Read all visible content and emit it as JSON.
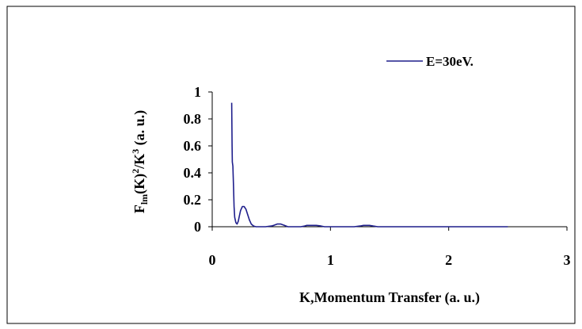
{
  "chart_data": {
    "type": "line",
    "title": "",
    "xlabel": "K,Momentum Transfer (a. u.)",
    "ylabel": {
      "parts": [
        {
          "text": "F",
          "style": "normal"
        },
        {
          "text": "lm",
          "style": "sub"
        },
        {
          "text": "(K)",
          "style": "normal"
        },
        {
          "text": "2",
          "style": "super"
        },
        {
          "text": "/K",
          "style": "normal"
        },
        {
          "text": "3",
          "style": "super"
        },
        {
          "text": " (a. u.)",
          "style": "normal"
        }
      ]
    },
    "xlim": [
      0,
      3
    ],
    "ylim": [
      0,
      1
    ],
    "xticks": [
      0,
      1,
      2,
      3
    ],
    "xtick_labels": [
      "0",
      "1",
      "2",
      "3"
    ],
    "yticks": [
      0,
      0.2,
      0.4,
      0.6,
      0.8,
      1
    ],
    "ytick_labels": [
      "0",
      "0.2",
      "0.4",
      "0.6",
      "0.8",
      "1"
    ],
    "grid": false,
    "legend_position": "top-right",
    "series": [
      {
        "name": "E=30eV.",
        "color": "#1f1f8c",
        "points": [
          [
            0.165,
            0.92
          ],
          [
            0.168,
            0.6
          ],
          [
            0.17,
            0.48
          ],
          [
            0.175,
            0.45
          ],
          [
            0.18,
            0.3
          ],
          [
            0.185,
            0.15
          ],
          [
            0.19,
            0.07
          ],
          [
            0.2,
            0.03
          ],
          [
            0.21,
            0.02
          ],
          [
            0.22,
            0.04
          ],
          [
            0.23,
            0.08
          ],
          [
            0.24,
            0.12
          ],
          [
            0.255,
            0.15
          ],
          [
            0.27,
            0.15
          ],
          [
            0.285,
            0.13
          ],
          [
            0.3,
            0.09
          ],
          [
            0.315,
            0.05
          ],
          [
            0.33,
            0.02
          ],
          [
            0.35,
            0.005
          ],
          [
            0.37,
            0.0
          ],
          [
            0.4,
            0.0
          ],
          [
            0.45,
            0.0
          ],
          [
            0.5,
            0.005
          ],
          [
            0.52,
            0.01
          ],
          [
            0.55,
            0.02
          ],
          [
            0.58,
            0.02
          ],
          [
            0.61,
            0.01
          ],
          [
            0.64,
            0.0
          ],
          [
            0.7,
            0.0
          ],
          [
            0.75,
            0.0
          ],
          [
            0.78,
            0.005
          ],
          [
            0.8,
            0.01
          ],
          [
            0.85,
            0.01
          ],
          [
            0.88,
            0.01
          ],
          [
            0.92,
            0.005
          ],
          [
            0.95,
            0.0
          ],
          [
            1.0,
            0.0
          ],
          [
            1.1,
            0.0
          ],
          [
            1.2,
            0.0
          ],
          [
            1.25,
            0.005
          ],
          [
            1.28,
            0.01
          ],
          [
            1.33,
            0.01
          ],
          [
            1.36,
            0.005
          ],
          [
            1.4,
            0.0
          ],
          [
            1.6,
            0.0
          ],
          [
            1.8,
            0.0
          ],
          [
            2.0,
            0.0
          ],
          [
            2.2,
            0.0
          ],
          [
            2.5,
            0.0
          ]
        ]
      }
    ]
  }
}
